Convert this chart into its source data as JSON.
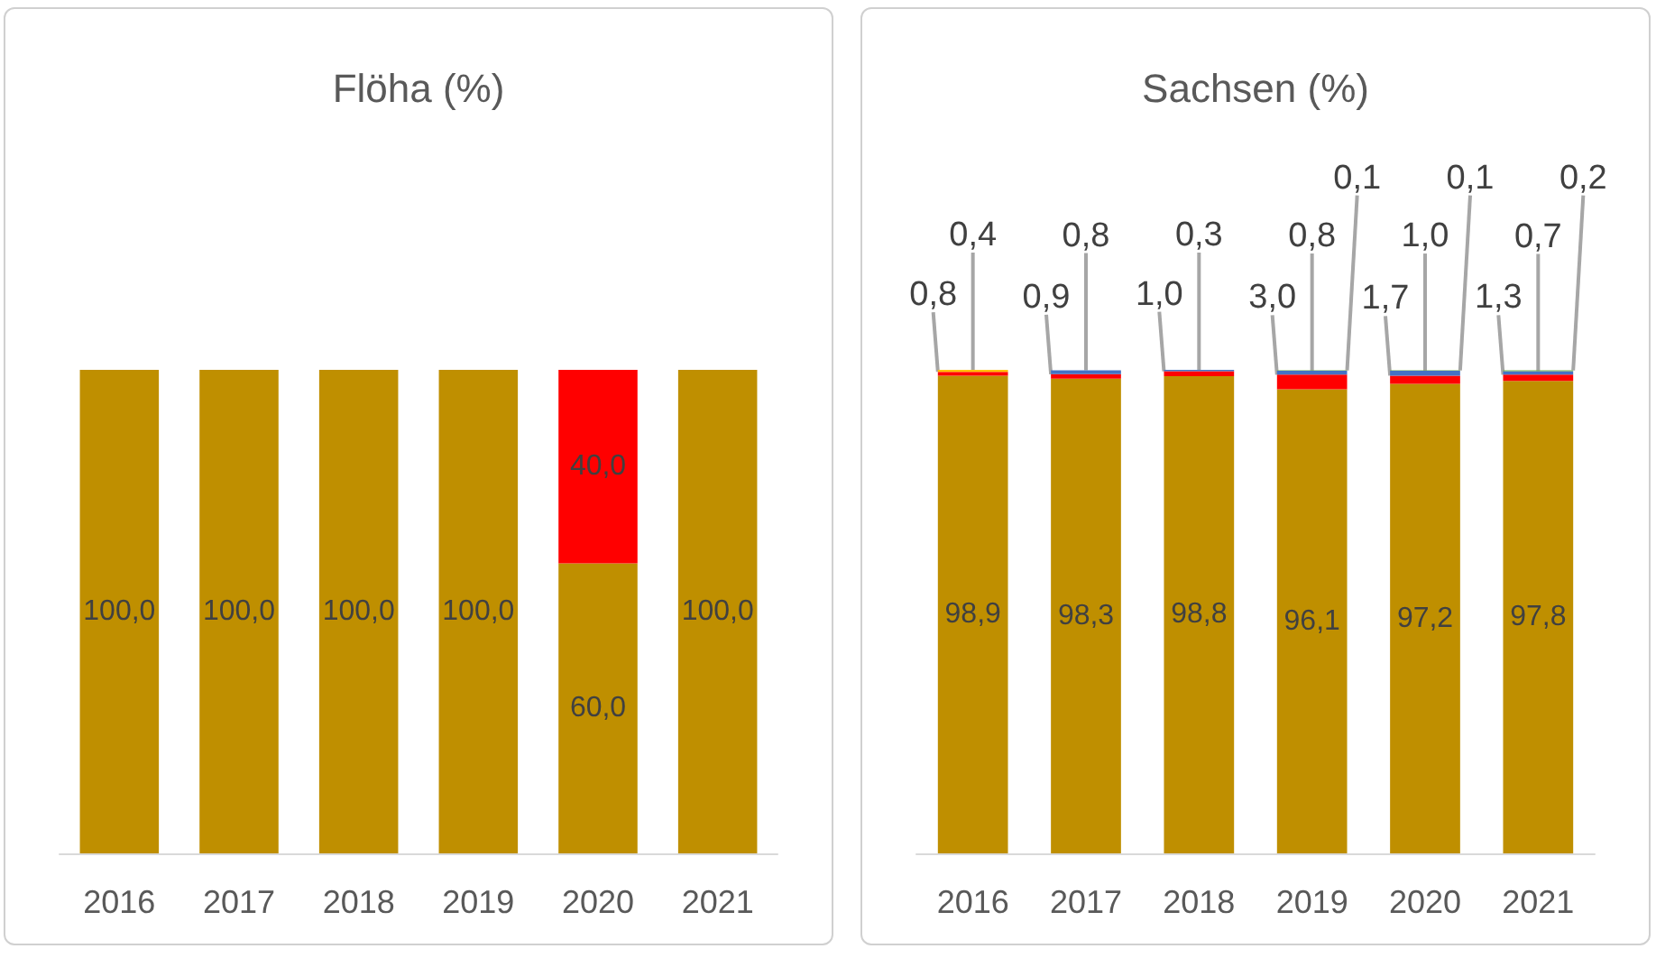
{
  "chart_data": [
    {
      "type": "bar",
      "title": "Flöha (%)",
      "stacked": true,
      "tick_labels": "x",
      "categories": [
        "2016",
        "2017",
        "2018",
        "2019",
        "2020",
        "2021"
      ],
      "series": [
        {
          "color": "#bf8f00",
          "values": [
            100.0,
            100.0,
            100.0,
            100.0,
            60.0,
            100.0
          ],
          "value_labels": [
            "100,0",
            "100,0",
            "100,0",
            "100,0",
            "60,0",
            "100,0"
          ]
        },
        {
          "color": "#ff0000",
          "values": [
            null,
            null,
            null,
            null,
            40.0,
            null
          ],
          "value_labels": [
            null,
            null,
            null,
            null,
            "40,0",
            null
          ]
        }
      ]
    },
    {
      "type": "bar",
      "title": "Sachsen (%)",
      "stacked": true,
      "tick_labels": "x",
      "categories": [
        "2016",
        "2017",
        "2018",
        "2019",
        "2020",
        "2021"
      ],
      "series": [
        {
          "color": "#bf8f00",
          "values": [
            98.9,
            98.3,
            98.8,
            96.1,
            97.2,
            97.8
          ],
          "value_labels": [
            "98,9",
            "98,3",
            "98,8",
            "96,1",
            "97,2",
            "97,8"
          ]
        },
        {
          "color": "#ff0000",
          "values": [
            0.8,
            0.9,
            1.0,
            3.0,
            1.7,
            1.3
          ],
          "value_labels": [
            "0,8",
            "0,9",
            "1,0",
            "3,0",
            "1,7",
            "1,3"
          ]
        },
        {
          "color": "#ffc000",
          "values": [
            0.4,
            null,
            null,
            null,
            null,
            null
          ],
          "value_labels": [
            "0,4",
            null,
            null,
            null,
            null,
            null
          ]
        },
        {
          "color": "#4472c4",
          "values": [
            null,
            0.8,
            0.3,
            0.8,
            1.0,
            0.7
          ],
          "value_labels": [
            null,
            "0,8",
            "0,3",
            "0,8",
            "1,0",
            "0,7"
          ]
        },
        {
          "color": "#70ad47",
          "values": [
            null,
            null,
            null,
            0.1,
            0.1,
            0.2
          ],
          "value_labels": [
            null,
            null,
            null,
            "0,1",
            "0,1",
            "0,2"
          ]
        }
      ]
    }
  ]
}
